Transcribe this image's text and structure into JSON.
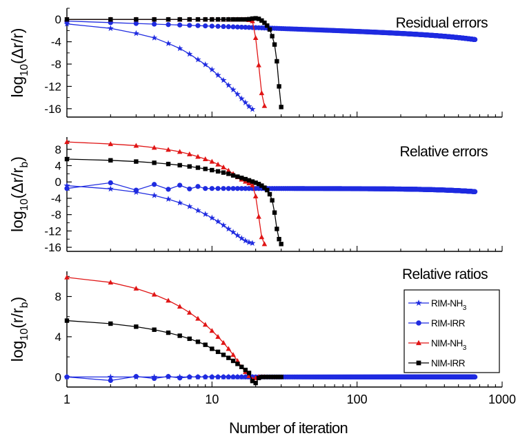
{
  "figure": {
    "xlabel": "Number of iteration",
    "xaxis": {
      "scale": "log",
      "xlim": [
        1,
        1000
      ],
      "tick_values": [
        1,
        10,
        100,
        1000
      ],
      "tick_labels": [
        "1",
        "10",
        "100",
        "1000"
      ]
    }
  },
  "colors": {
    "RIM-NH3": "#1f2be0",
    "RIM-IRR": "#1f2be0",
    "NIM-NH3": "#e01515",
    "NIM-IRR": "#000000"
  },
  "legend": {
    "placement": "right",
    "entries": [
      {
        "key": "RIM-NH3",
        "base": "RIM-NH",
        "sub": "3",
        "marker": "star"
      },
      {
        "key": "RIM-IRR",
        "base": "RIM-IRR",
        "sub": "",
        "marker": "circle"
      },
      {
        "key": "NIM-NH3",
        "base": "NIM-NH",
        "sub": "3",
        "marker": "triangle"
      },
      {
        "key": "NIM-IRR",
        "base": "NIM-IRR",
        "sub": "",
        "marker": "square"
      }
    ]
  },
  "chart_data": [
    {
      "type": "line",
      "title": "Residual errors",
      "ylabel": {
        "base": "log",
        "sub1": "10",
        "mid": "(Δr/r",
        "sub2": "",
        "end": ")"
      },
      "xscale": "log",
      "ylim": [
        -17.5,
        2
      ],
      "yticks": [
        0,
        -4,
        -8,
        -12,
        -16
      ],
      "yticks_minor": [
        2,
        -2,
        -6,
        -10,
        -14
      ],
      "series": [
        {
          "key": "RIM-NH3",
          "marker": "star",
          "x_range": [
            1,
            19
          ],
          "y": [
            -0.8,
            -1.6,
            -2.5,
            -3.3,
            -4.3,
            -5.2,
            -6.2,
            -7.2,
            -8.1,
            -9.0,
            -10.0,
            -10.9,
            -11.8,
            -12.6,
            -13.4,
            -14.2,
            -14.9,
            -15.6,
            -16.1
          ]
        },
        {
          "key": "RIM-IRR",
          "marker": "circle",
          "x_range": [
            1,
            650
          ],
          "expr": "-0.3 - 0.9*log10(x) - 6.5e-5*(x-1)^1.45"
        },
        {
          "key": "NIM-NH3",
          "marker": "triangle",
          "x_range": [
            1,
            23
          ],
          "y": [
            0,
            0,
            0,
            0,
            0,
            0,
            0,
            0,
            0,
            0,
            0,
            0,
            0,
            0,
            0,
            0,
            0,
            -0.1,
            -0.3,
            -3.3,
            -8.2,
            -13.2,
            -15.5
          ]
        },
        {
          "key": "NIM-IRR",
          "marker": "square",
          "x_range": [
            1,
            30
          ],
          "y": [
            0,
            0,
            0,
            0,
            0,
            0,
            0,
            0,
            0,
            0,
            0,
            0,
            0,
            0,
            0,
            0,
            0,
            0.05,
            0.15,
            0.2,
            0.1,
            -0.2,
            -0.6,
            -1.1,
            -1.8,
            -3.0,
            -4.5,
            -7.5,
            -12.0,
            -15.7
          ]
        }
      ]
    },
    {
      "type": "line",
      "title": "Relative errors",
      "ylabel": {
        "base": "log",
        "sub1": "10",
        "mid": "(Δr/r",
        "sub2": "b",
        "end": ")"
      },
      "xscale": "log",
      "ylim": [
        -17,
        11
      ],
      "yticks": [
        8,
        4,
        0,
        -4,
        -8,
        -12,
        -16
      ],
      "yticks_minor": [
        10,
        6,
        2,
        -2,
        -6,
        -10,
        -14
      ],
      "series": [
        {
          "key": "RIM-NH3",
          "marker": "star",
          "x_range": [
            1,
            19
          ],
          "y": [
            -0.9,
            -1.7,
            -2.5,
            -3.3,
            -4.2,
            -5.1,
            -6.0,
            -7.0,
            -7.9,
            -8.8,
            -9.7,
            -10.6,
            -11.5,
            -12.3,
            -13.1,
            -13.8,
            -14.4,
            -14.8,
            -15.0
          ]
        },
        {
          "key": "RIM-IRR",
          "marker": "circle",
          "x_range": [
            1,
            650
          ],
          "expr": "-1.6 + oscillation for x<8 - 6.5e-5*(x-1)^1.45 (tail)",
          "y_first": [
            -1.6,
            -0.2,
            -2.0,
            -0.6,
            -1.8,
            -0.8,
            -1.7,
            -1.1
          ]
        },
        {
          "key": "NIM-NH3",
          "marker": "triangle",
          "x_range": [
            1,
            23
          ],
          "y": [
            9.8,
            9.3,
            8.9,
            8.4,
            7.9,
            7.4,
            6.8,
            6.2,
            5.6,
            5.0,
            4.3,
            3.6,
            2.8,
            2.0,
            1.2,
            0.6,
            0.1,
            -0.3,
            -0.8,
            -3.5,
            -8.5,
            -13.5,
            -15.2
          ]
        },
        {
          "key": "NIM-IRR",
          "marker": "square",
          "x_range": [
            1,
            30
          ],
          "y": [
            5.6,
            5.3,
            5.0,
            4.7,
            4.4,
            4.1,
            3.8,
            3.5,
            3.2,
            2.9,
            2.6,
            2.3,
            2.0,
            1.6,
            1.3,
            1.0,
            0.7,
            0.4,
            0.1,
            -0.2,
            -0.5,
            -0.9,
            -1.4,
            -2.0,
            -3.0,
            -4.5,
            -7.5,
            -11.5,
            -14.0,
            -15.2
          ]
        }
      ]
    },
    {
      "type": "line",
      "title": "Relative ratios",
      "ylabel": {
        "base": "log",
        "sub1": "10",
        "mid": "(r/r",
        "sub2": "b",
        "end": ")"
      },
      "xscale": "log",
      "ylim": [
        -1,
        10.5
      ],
      "yticks": [
        8,
        4,
        0
      ],
      "yticks_minor": [
        10,
        6,
        2
      ],
      "series": [
        {
          "key": "RIM-NH3",
          "marker": "star",
          "x_range": [
            1,
            19
          ],
          "y": [
            0,
            0,
            0,
            0,
            0,
            0,
            0,
            0,
            0,
            0,
            0,
            0,
            0,
            0,
            0,
            0,
            0,
            0,
            0
          ]
        },
        {
          "key": "RIM-IRR",
          "marker": "circle",
          "x_range": [
            1,
            650
          ],
          "y_first": [
            0,
            -0.35,
            0.05,
            -0.15,
            0.05,
            -0.1
          ],
          "tail": 0
        },
        {
          "key": "NIM-NH3",
          "marker": "triangle",
          "x_range": [
            1,
            23
          ],
          "y": [
            9.9,
            9.4,
            8.8,
            8.2,
            7.6,
            7.0,
            6.4,
            5.8,
            5.2,
            4.6,
            4.0,
            3.4,
            2.8,
            2.2,
            1.6,
            1.0,
            0.5,
            0.1,
            -0.2,
            -0.1,
            0,
            0,
            0
          ]
        },
        {
          "key": "NIM-IRR",
          "marker": "square",
          "x_range": [
            1,
            30
          ],
          "y": [
            5.6,
            5.3,
            5.0,
            4.7,
            4.4,
            4.1,
            3.8,
            3.5,
            3.2,
            2.8,
            2.5,
            2.2,
            1.9,
            1.6,
            1.3,
            1.0,
            0.7,
            0.4,
            -0.4,
            -0.6,
            -0.1,
            0,
            0,
            0,
            0,
            0,
            0,
            0,
            0,
            0
          ]
        }
      ]
    }
  ]
}
